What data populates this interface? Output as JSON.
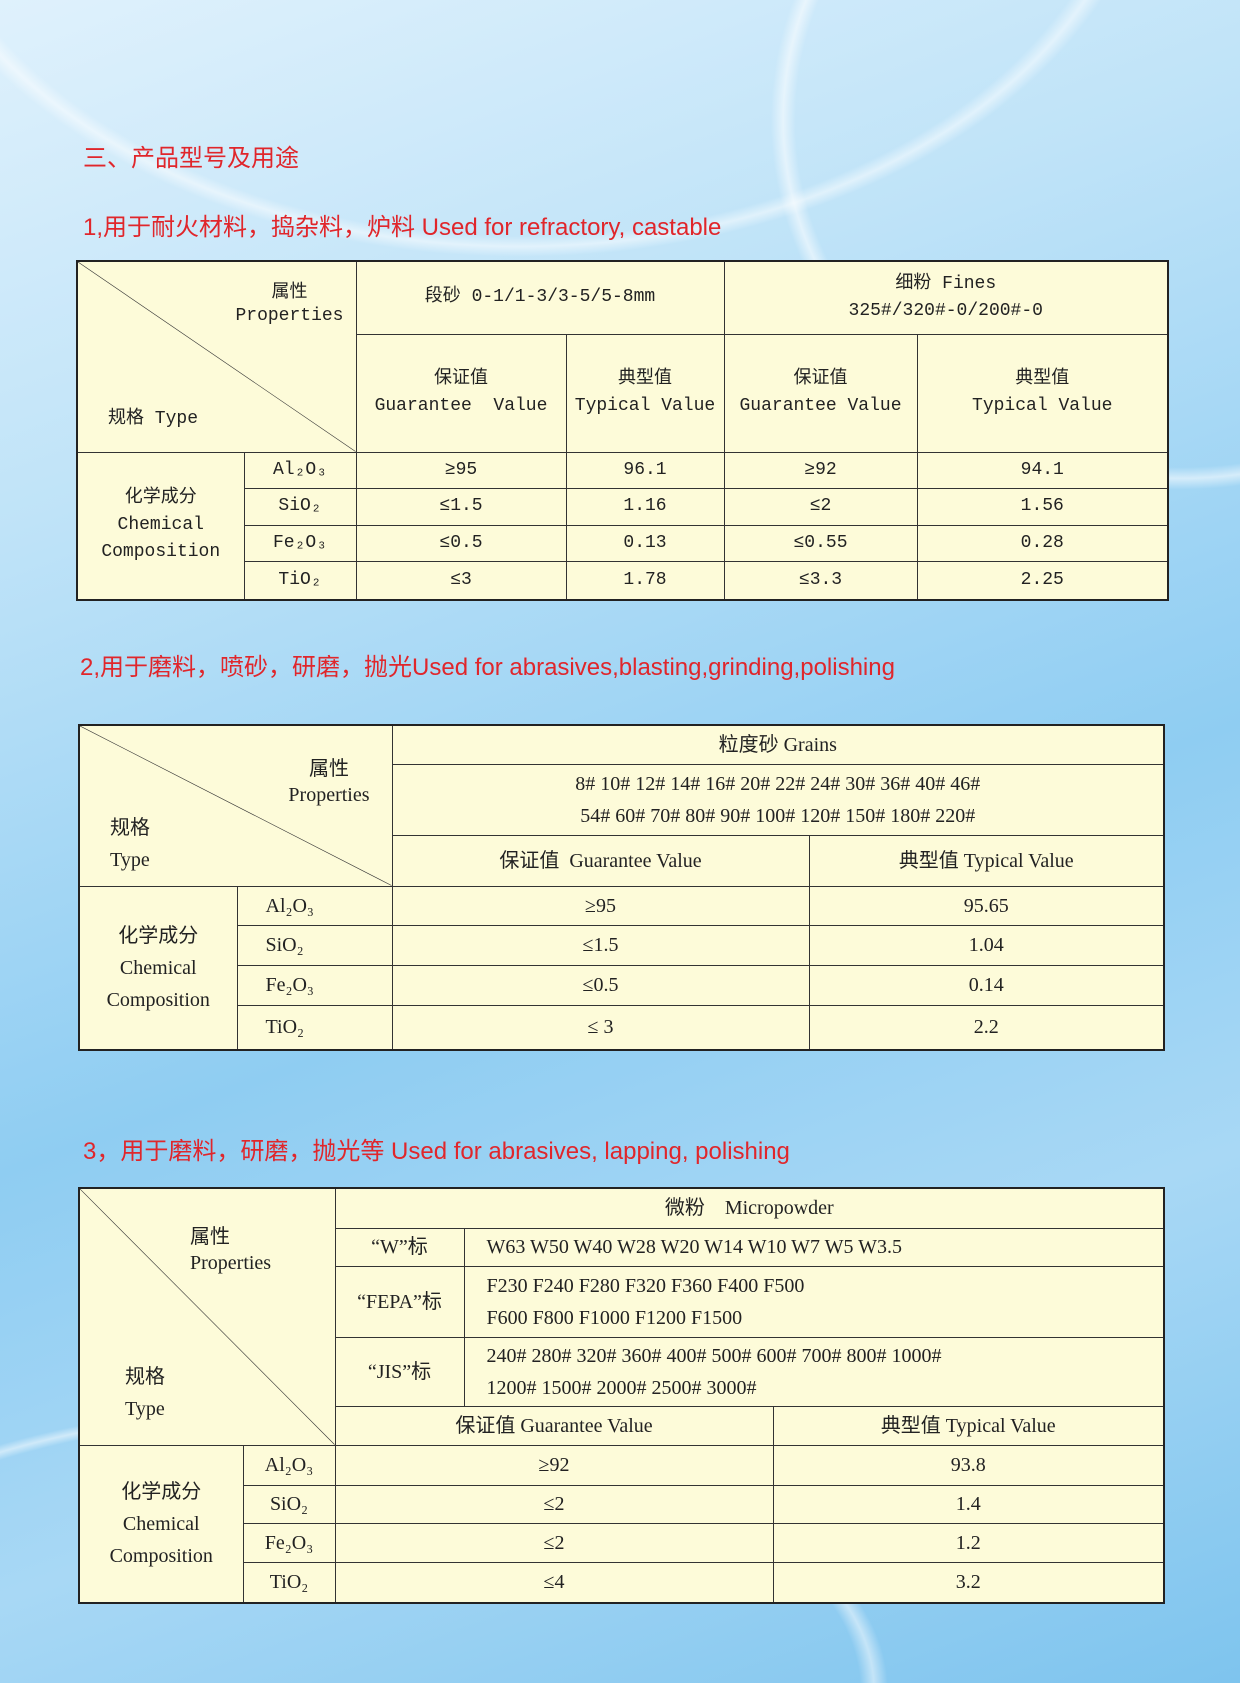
{
  "section_title": "三、产品型号及用途",
  "colors": {
    "heading": "#e0262b",
    "table_bg": "#fdfbd9"
  },
  "t1": {
    "heading": "1,用于耐火材料，捣杂料，炉料 Used for refractory, castable",
    "prop_cn": "属性",
    "prop_en": "Properties",
    "type": "规格 Type",
    "grp1": "段砂 0-1/1-3/3-5/5-8mm",
    "grp2_a": "细粉 Fines",
    "grp2_b": "325#/320#-0/200#-0",
    "gv_cn": "保证值",
    "gv_en": "Guarantee  Value",
    "tv_cn": "典型值",
    "tv_en": "Typical Value",
    "gv2_en": "Guarantee Value",
    "chem_cn": "化学成分",
    "chem_en1": "Chemical",
    "chem_en2": "Composition",
    "rows": [
      [
        "Al₂O₃",
        "≥95",
        "96.1",
        "≥92",
        "94.1"
      ],
      [
        "SiO₂",
        "≤1.5",
        "1.16",
        "≤2",
        "1.56"
      ],
      [
        "Fe₂O₃",
        "≤0.5",
        "0.13",
        "≤0.55",
        "0.28"
      ],
      [
        "TiO₂",
        "≤3",
        "1.78",
        "≤3.3",
        "2.25"
      ]
    ]
  },
  "t2": {
    "heading": "2,用于磨料，喷砂，研磨，抛光Used for abrasives,blasting,grinding,polishing",
    "prop_cn": "属性",
    "prop_en": "Properties",
    "type_cn": "规格",
    "type_en": "Type",
    "grains": "粒度砂 Grains",
    "sizes1": "8# 10# 12# 14# 16# 20# 22# 24# 30# 36# 40# 46#",
    "sizes2": "54# 60# 70# 80# 90# 100# 120# 150# 180# 220#",
    "gv": "保证值  Guarantee Value",
    "tv": "典型值 Typical Value",
    "chem_cn": "化学成分",
    "chem_en1": "Chemical",
    "chem_en2": "Composition",
    "rows": [
      [
        "Al₂O₃",
        "≥95",
        "95.65"
      ],
      [
        "SiO₂",
        "≤1.5",
        "1.04"
      ],
      [
        "Fe₂O₃",
        "≤0.5",
        "0.14"
      ],
      [
        "TiO₂",
        "≤ 3",
        "2.2"
      ]
    ]
  },
  "t3": {
    "heading": "3，用于磨料，研磨，抛光等  Used for abrasives, lapping, polishing",
    "prop_cn": "属性",
    "prop_en": "Properties",
    "type_cn": "规格",
    "type_en": "Type",
    "micro": "微粉    Micropowder",
    "w_label": "“W”标",
    "w_vals": "W63 W50 W40 W28 W20 W14 W10 W7 W5 W3.5",
    "fepa_label": "“FEPA”标",
    "fepa1": "F230 F240 F280 F320 F360 F400 F500",
    "fepa2": "F600 F800 F1000 F1200 F1500",
    "jis_label": "“JIS”标",
    "jis1": "240# 280# 320# 360# 400# 500# 600# 700# 800# 1000#",
    "jis2": "1200# 1500# 2000# 2500# 3000#",
    "gv": "保证值 Guarantee Value",
    "tv": "典型值 Typical Value",
    "chem_cn": "化学成分",
    "chem_en1": "Chemical",
    "chem_en2": "Composition",
    "rows": [
      [
        "Al₂O₃",
        "≥92",
        "93.8"
      ],
      [
        "SiO₂",
        "≤2",
        "1.4"
      ],
      [
        "Fe₂O₃",
        "≤2",
        "1.2"
      ],
      [
        "TiO₂",
        "≤4",
        "3.2"
      ]
    ]
  }
}
